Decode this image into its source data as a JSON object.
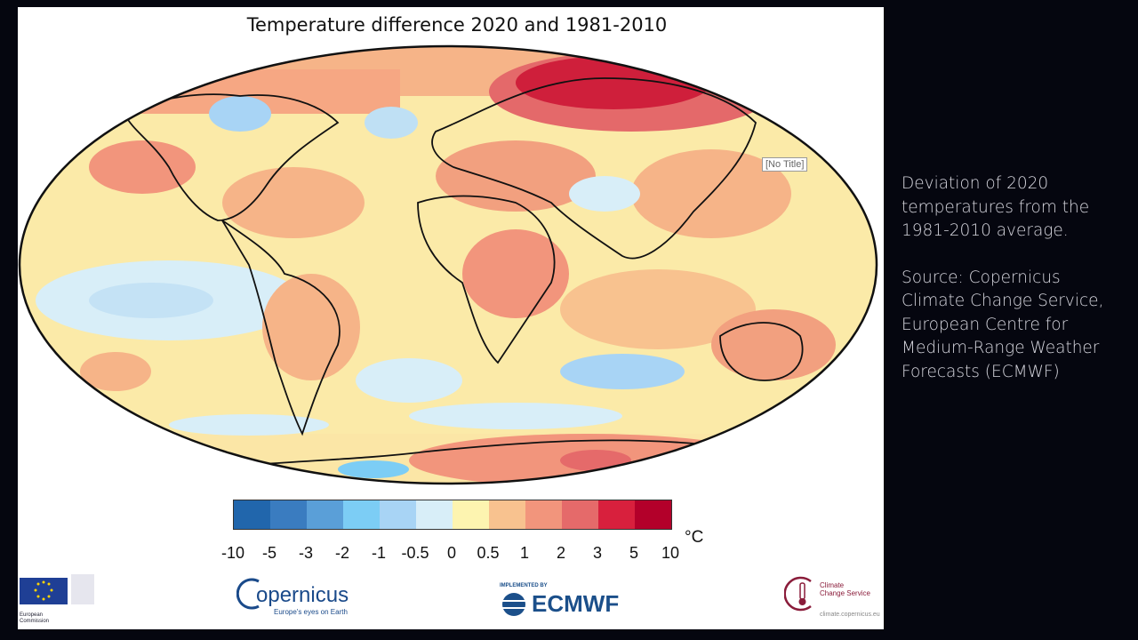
{
  "map": {
    "title": "Temperature difference 2020 and 1981-2010",
    "unit": "°C",
    "tooltip": "[No Title]",
    "colorbar": {
      "ticks": [
        "-10",
        "-5",
        "-3",
        "-2",
        "-1",
        "-0.5",
        "0",
        "0.5",
        "1",
        "2",
        "3",
        "5",
        "10"
      ],
      "colors": [
        "#2166ac",
        "#3a7cc0",
        "#5a9fd8",
        "#7ccdf5",
        "#a8d4f5",
        "#d8eef8",
        "#fdf4b0",
        "#f8c28f",
        "#f2957c",
        "#e56a6a",
        "#d8203d",
        "#b3002a"
      ]
    }
  },
  "logos": {
    "ec_line1": "European",
    "ec_line2": "Commission",
    "copernicus": "opernicus",
    "copernicus_tagline": "Europe's eyes on Earth",
    "ecmwf_top": "IMPLEMENTED BY",
    "ecmwf": "ECMWF",
    "c3s_line1": "Climate",
    "c3s_line2": "Change Service",
    "c3s_url": "climate.copernicus.eu"
  },
  "caption": {
    "description": "Deviation of 2020 temperatures from the 1981-2010 average.",
    "source": "Source: Copernicus Climate Change Service, European Centre for Medium-Range Weather Forecasts (ECMWF)"
  }
}
